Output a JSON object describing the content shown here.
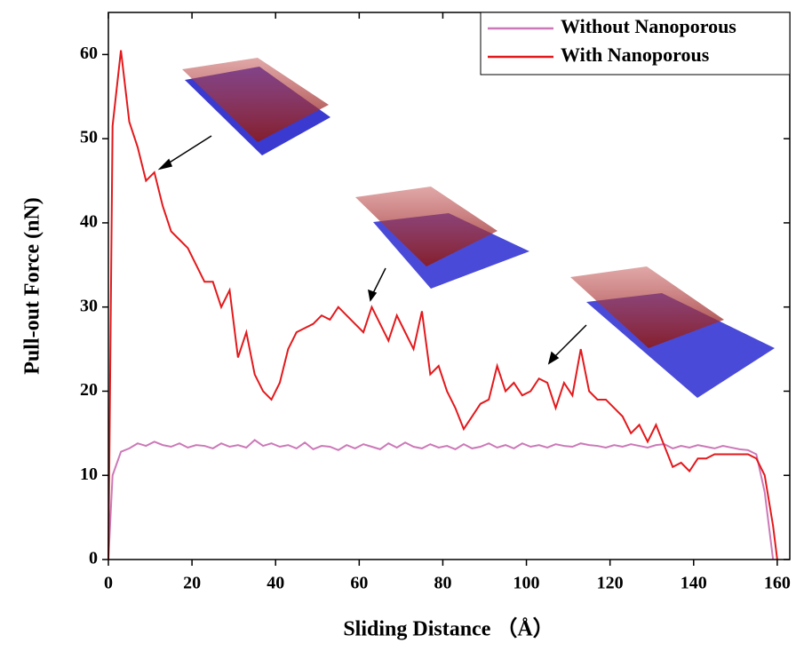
{
  "chart_data": {
    "type": "line",
    "x_label": "Sliding Distance （Å）",
    "y_label": "Pull-out  Force (nN)",
    "x": [
      0,
      1,
      3,
      5,
      7,
      9,
      11,
      13,
      15,
      17,
      19,
      21,
      23,
      25,
      27,
      29,
      31,
      33,
      35,
      37,
      39,
      41,
      43,
      45,
      47,
      49,
      51,
      53,
      55,
      57,
      59,
      61,
      63,
      65,
      67,
      69,
      71,
      73,
      75,
      77,
      79,
      81,
      83,
      85,
      87,
      89,
      91,
      93,
      95,
      97,
      99,
      101,
      103,
      105,
      107,
      109,
      111,
      113,
      115,
      117,
      119,
      121,
      123,
      125,
      127,
      129,
      131,
      133,
      135,
      137,
      139,
      141,
      143,
      145,
      147,
      149,
      151,
      153,
      155,
      157,
      159,
      160
    ],
    "series": [
      {
        "name": "Without Nanoporous",
        "color": "#cc79b8",
        "values": [
          0,
          10,
          12.8,
          13.2,
          13.8,
          13.5,
          14,
          13.6,
          13.4,
          13.8,
          13.3,
          13.6,
          13.5,
          13.2,
          13.8,
          13.4,
          13.6,
          13.3,
          14.2,
          13.5,
          13.8,
          13.4,
          13.6,
          13.2,
          13.9,
          13.1,
          13.5,
          13.4,
          13,
          13.6,
          13.2,
          13.7,
          13.4,
          13.1,
          13.8,
          13.3,
          13.9,
          13.4,
          13.2,
          13.7,
          13.3,
          13.5,
          13.1,
          13.7,
          13.2,
          13.4,
          13.8,
          13.3,
          13.6,
          13.2,
          13.8,
          13.4,
          13.6,
          13.3,
          13.7,
          13.5,
          13.4,
          13.8,
          13.6,
          13.5,
          13.3,
          13.6,
          13.4,
          13.7,
          13.5,
          13.3,
          13.6,
          13.7,
          13.2,
          13.5,
          13.3,
          13.6,
          13.4,
          13.2,
          13.5,
          13.3,
          13.1,
          13,
          12.5,
          8,
          0,
          null
        ]
      },
      {
        "name": "With Nanoporous",
        "color": "#e3191c",
        "values": [
          0,
          51.5,
          60.5,
          52,
          49,
          45,
          46,
          42,
          39,
          38,
          37,
          35,
          33,
          33,
          30,
          32,
          24,
          27,
          22,
          20,
          19,
          21,
          25,
          27,
          27.5,
          28,
          29,
          28.5,
          30,
          29,
          28,
          27,
          30,
          28,
          26,
          29,
          27,
          25,
          29.5,
          22,
          23,
          20,
          18,
          15.5,
          17,
          18.5,
          19,
          23,
          20,
          21,
          19.5,
          20,
          21.5,
          21,
          18,
          21,
          19.5,
          25,
          20,
          19,
          19,
          18,
          17,
          15,
          16,
          14,
          16,
          13.5,
          11,
          11.5,
          10.5,
          12,
          12,
          12.5,
          12.5,
          12.5,
          12.5,
          12.5,
          12,
          10,
          4,
          0
        ]
      }
    ],
    "xlim": [
      0,
      163
    ],
    "ylim": [
      0,
      65
    ],
    "xticks": [
      0,
      20,
      40,
      60,
      80,
      100,
      120,
      140,
      160
    ],
    "yticks": [
      0,
      10,
      20,
      30,
      40,
      50,
      60
    ],
    "legend": "top-right"
  }
}
